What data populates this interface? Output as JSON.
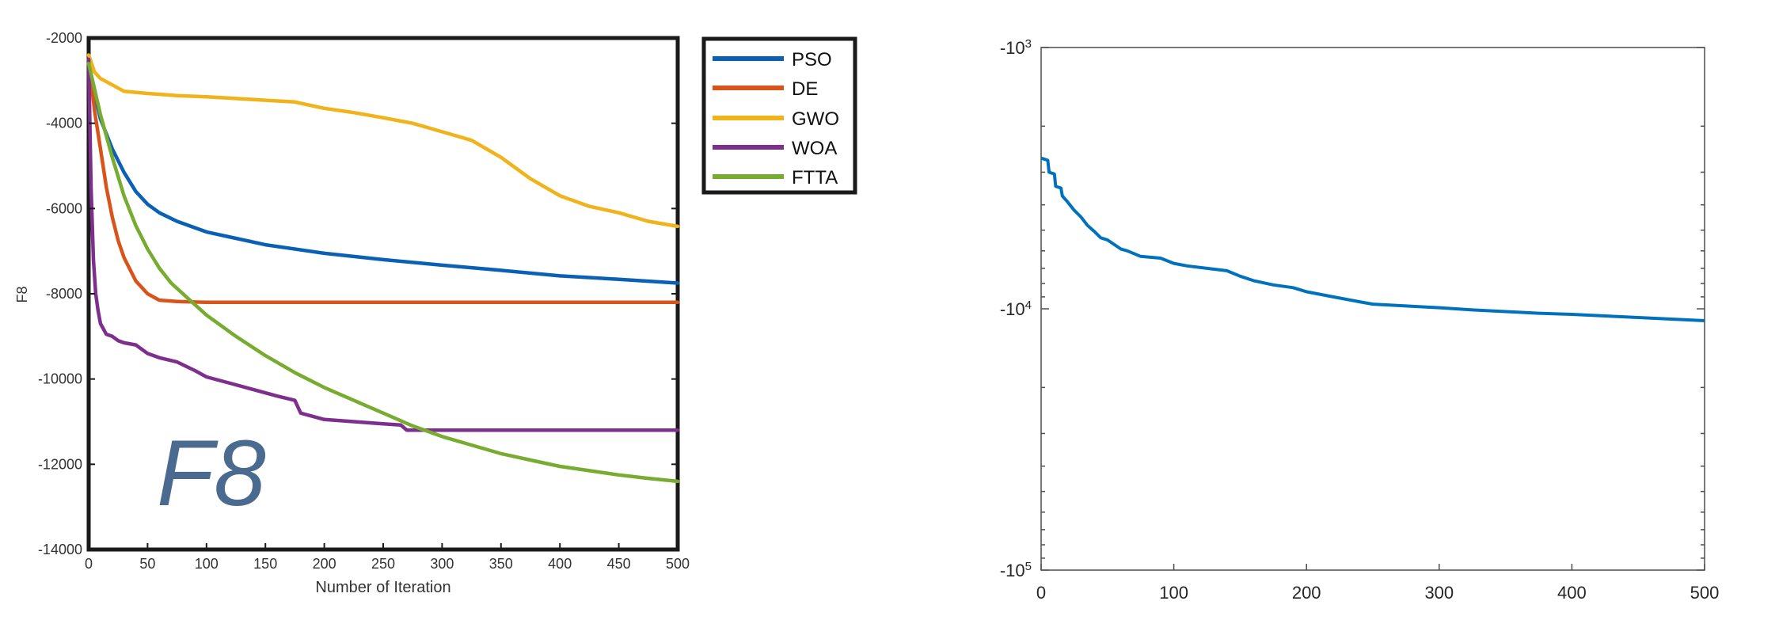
{
  "chart_data": [
    {
      "type": "line",
      "title": "",
      "annotation": "F8",
      "xlabel": "Number of Iteration",
      "ylabel": "F8",
      "xlim": [
        0,
        500
      ],
      "ylim": [
        -14000,
        -2000
      ],
      "xticks": [
        0,
        50,
        100,
        150,
        200,
        250,
        300,
        350,
        400,
        450,
        500
      ],
      "yticks": [
        -14000,
        -12000,
        -10000,
        -8000,
        -6000,
        -4000,
        -2000
      ],
      "grid": false,
      "legend_position": "outside-top-right",
      "colors": {
        "PSO": "#0a60b5",
        "DE": "#d9541a",
        "GWO": "#f0b31a",
        "WOA": "#7e2f8e",
        "FTTA": "#77ac30",
        "annotation": "#4b6a90"
      },
      "series": [
        {
          "name": "PSO",
          "x": [
            0,
            5,
            10,
            20,
            30,
            40,
            50,
            60,
            75,
            100,
            125,
            150,
            200,
            250,
            300,
            350,
            400,
            450,
            500
          ],
          "y": [
            -2600,
            -3300,
            -3900,
            -4600,
            -5150,
            -5600,
            -5900,
            -6100,
            -6300,
            -6550,
            -6700,
            -6850,
            -7050,
            -7200,
            -7330,
            -7450,
            -7580,
            -7660,
            -7750
          ]
        },
        {
          "name": "DE",
          "x": [
            0,
            5,
            10,
            15,
            20,
            25,
            30,
            40,
            50,
            60,
            75,
            100,
            200,
            300,
            400,
            500
          ],
          "y": [
            -2500,
            -3700,
            -4600,
            -5500,
            -6200,
            -6750,
            -7150,
            -7700,
            -8000,
            -8150,
            -8180,
            -8200,
            -8200,
            -8200,
            -8200,
            -8200
          ]
        },
        {
          "name": "GWO",
          "x": [
            0,
            5,
            10,
            20,
            30,
            50,
            75,
            100,
            125,
            150,
            175,
            200,
            225,
            250,
            275,
            300,
            325,
            350,
            375,
            400,
            425,
            450,
            475,
            500
          ],
          "y": [
            -2400,
            -2800,
            -2950,
            -3100,
            -3250,
            -3300,
            -3350,
            -3380,
            -3420,
            -3460,
            -3500,
            -3650,
            -3750,
            -3870,
            -4000,
            -4200,
            -4400,
            -4800,
            -5300,
            -5700,
            -5950,
            -6100,
            -6300,
            -6420
          ]
        },
        {
          "name": "WOA",
          "x": [
            0,
            2,
            4,
            6,
            8,
            10,
            15,
            20,
            25,
            30,
            40,
            50,
            60,
            75,
            90,
            100,
            120,
            140,
            160,
            175,
            180,
            200,
            225,
            250,
            265,
            270,
            300,
            400,
            500
          ],
          "y": [
            -2500,
            -5500,
            -7200,
            -8000,
            -8400,
            -8700,
            -8950,
            -9000,
            -9100,
            -9150,
            -9200,
            -9400,
            -9500,
            -9600,
            -9800,
            -9950,
            -10100,
            -10250,
            -10400,
            -10500,
            -10800,
            -10950,
            -11000,
            -11050,
            -11080,
            -11200,
            -11200,
            -11200,
            -11200
          ]
        },
        {
          "name": "FTTA",
          "x": [
            0,
            10,
            20,
            30,
            40,
            50,
            60,
            70,
            80,
            90,
            100,
            125,
            150,
            175,
            200,
            225,
            250,
            275,
            300,
            325,
            350,
            375,
            400,
            425,
            450,
            475,
            500
          ],
          "y": [
            -2600,
            -3800,
            -4800,
            -5700,
            -6400,
            -6950,
            -7400,
            -7750,
            -8000,
            -8250,
            -8500,
            -9000,
            -9450,
            -9850,
            -10200,
            -10500,
            -10800,
            -11100,
            -11350,
            -11550,
            -11750,
            -11900,
            -12050,
            -12150,
            -12250,
            -12330,
            -12400
          ]
        }
      ]
    },
    {
      "type": "line",
      "title": "",
      "xlabel": "",
      "ylabel": "",
      "xlim": [
        0,
        500
      ],
      "ylim": [
        -100000,
        -1000
      ],
      "yscale": "symlog-negative",
      "xticks": [
        0,
        100,
        200,
        300,
        400,
        500
      ],
      "ytick_labels": [
        "-10^3",
        "-10^4",
        "-10^5"
      ],
      "grid": false,
      "colors": {
        "line": "#0072bd"
      },
      "series": [
        {
          "x": [
            0,
            5,
            6,
            10,
            11,
            15,
            16,
            20,
            25,
            30,
            35,
            40,
            45,
            50,
            60,
            65,
            75,
            90,
            100,
            110,
            125,
            140,
            150,
            160,
            175,
            190,
            200,
            220,
            240,
            250,
            275,
            300,
            325,
            350,
            375,
            400,
            425,
            450,
            475,
            500
          ],
          "y": [
            -2650,
            -2700,
            -3000,
            -3050,
            -3400,
            -3450,
            -3700,
            -3900,
            -4200,
            -4450,
            -4800,
            -5050,
            -5350,
            -5450,
            -5900,
            -6000,
            -6300,
            -6400,
            -6700,
            -6850,
            -7000,
            -7150,
            -7500,
            -7800,
            -8100,
            -8300,
            -8600,
            -9000,
            -9400,
            -9600,
            -9750,
            -9900,
            -10100,
            -10250,
            -10400,
            -10500,
            -10650,
            -10800,
            -10950,
            -11100
          ]
        }
      ]
    }
  ]
}
